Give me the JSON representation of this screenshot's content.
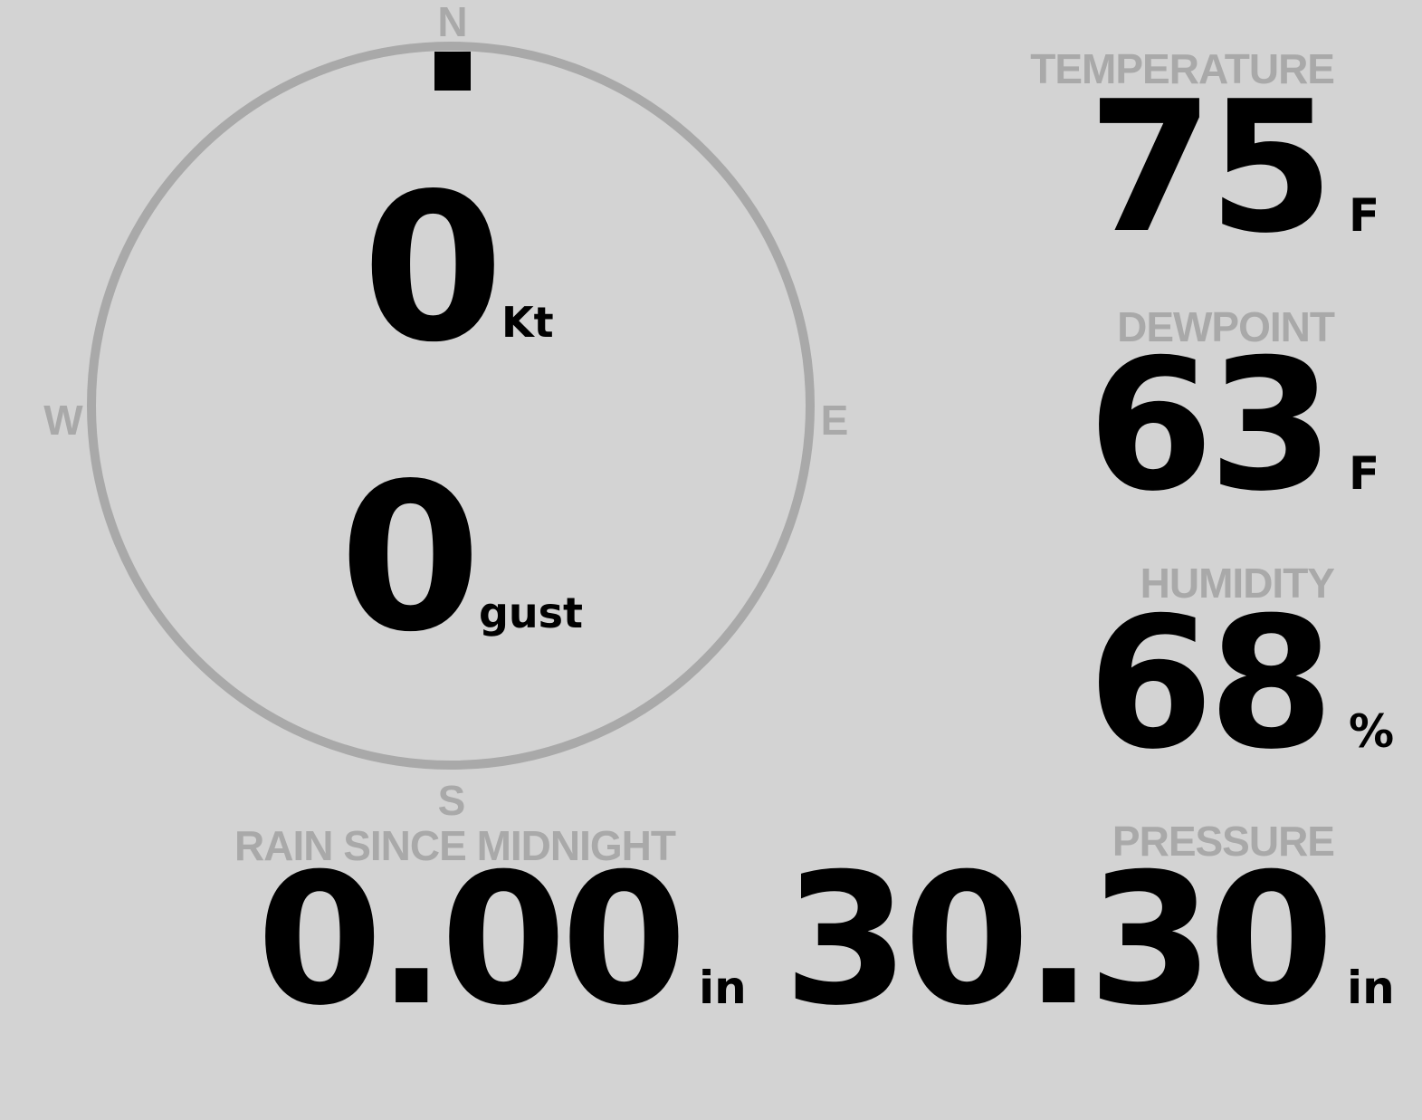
{
  "colors": {
    "background": "#d3d3d3",
    "label": "#a9a9a9",
    "value": "#000000",
    "wind_direction_marker": "#000000"
  },
  "compass": {
    "cardinals": {
      "north": "N",
      "east": "E",
      "south": "S",
      "west": "W"
    },
    "wind_direction_deg": 0,
    "wind_speed": "0",
    "wind_speed_unit": "Kt",
    "gust": "0",
    "gust_unit": "gust"
  },
  "temperature": {
    "label": "TEMPERATURE",
    "value": "75",
    "unit": "F"
  },
  "dewpoint": {
    "label": "DEWPOINT",
    "value": "63",
    "unit": "F"
  },
  "humidity": {
    "label": "HUMIDITY",
    "value": "68",
    "unit": "%"
  },
  "pressure": {
    "label": "PRESSURE",
    "value": "30.30",
    "unit": "in"
  },
  "rain": {
    "label": "RAIN SINCE MIDNIGHT",
    "value": "0.00",
    "unit": "in"
  }
}
